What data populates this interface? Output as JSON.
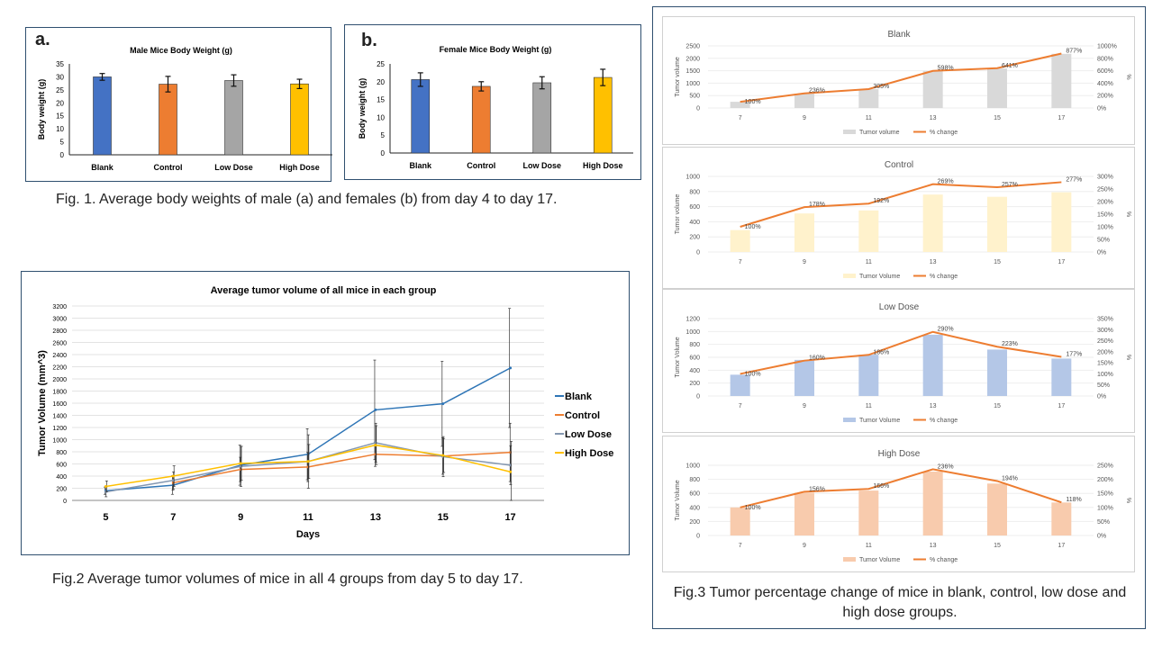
{
  "fig1": {
    "male": {
      "letter": "a.",
      "title": "Male Mice Body Weight (g)",
      "ylabel": "Body weight (g)",
      "categories": [
        "Blank",
        "Control",
        "Low Dose",
        "High Dose"
      ],
      "values": [
        30,
        27.2,
        28.6,
        27.3
      ],
      "errors": [
        1.3,
        3.0,
        2.2,
        1.8
      ],
      "colors": [
        "#4472c4",
        "#ed7d31",
        "#a5a5a5",
        "#ffc000"
      ],
      "ylim": [
        0,
        35
      ],
      "yticks": [
        0,
        5,
        10,
        15,
        20,
        25,
        30,
        35
      ]
    },
    "female": {
      "letter": "b.",
      "title": "Female Mice Body Weight (g)",
      "ylabel": "Body weight (g)",
      "categories": [
        "Blank",
        "Control",
        "Low Dose",
        "High Dose"
      ],
      "values": [
        20.6,
        18.7,
        19.7,
        21.2
      ],
      "errors": [
        1.9,
        1.3,
        1.7,
        2.3
      ],
      "colors": [
        "#4472c4",
        "#ed7d31",
        "#a5a5a5",
        "#ffc000"
      ],
      "ylim": [
        0,
        25
      ],
      "yticks": [
        0,
        5,
        10,
        15,
        20,
        25
      ]
    },
    "caption": "Fig. 1. Average body weights of male (a) and females (b) from day 4 to day 17."
  },
  "fig2": {
    "title": "Average tumor volume of all mice in each group",
    "xlabel": "Days",
    "ylabel": "Tumor Volume (mm^3)",
    "x": [
      5,
      7,
      9,
      11,
      13,
      15,
      17
    ],
    "ylim": [
      0,
      3200
    ],
    "yticks": [
      0,
      200,
      400,
      600,
      800,
      1000,
      1200,
      1400,
      1600,
      1800,
      2000,
      2200,
      2400,
      2600,
      2800,
      3000,
      3200
    ],
    "series": [
      {
        "name": "Blank",
        "color": "#2e75b6",
        "values": [
          160,
          250,
          580,
          760,
          1490,
          1590,
          2180
        ],
        "errors": [
          60,
          150,
          330,
          420,
          820,
          700,
          980
        ]
      },
      {
        "name": "Control",
        "color": "#ed7d31",
        "values": [
          null,
          290,
          510,
          550,
          760,
          730,
          790
        ],
        "errors": [
          0,
          120,
          200,
          240,
          200,
          300,
          480
        ]
      },
      {
        "name": "Low Dose",
        "color": "#8497b0",
        "values": [
          140,
          330,
          560,
          640,
          950,
          720,
          580
        ],
        "errors": [
          80,
          140,
          330,
          440,
          320,
          330,
          320
        ]
      },
      {
        "name": "High Dose",
        "color": "#ffc000",
        "values": [
          230,
          400,
          610,
          640,
          910,
          740,
          470
        ],
        "errors": [
          90,
          170,
          280,
          280,
          320,
          280,
          500
        ]
      }
    ],
    "caption": "Fig.2 Average tumor volumes of mice in all 4 groups from day 5 to day 17."
  },
  "fig3": {
    "caption": "Fig.3 Tumor percentage change of mice in blank, control, low dose and high dose groups.",
    "charts": [
      {
        "title": "Blank",
        "bar_name": "Tumor volume",
        "line_name": "% change",
        "ylabel": "Tumor volume",
        "y2label": "%",
        "bar_color": "#d9d9d9",
        "line_color": "#ed7d31",
        "categories": [
          "7",
          "9",
          "11",
          "13",
          "15",
          "17"
        ],
        "bars": [
          250,
          580,
          760,
          1490,
          1590,
          2180
        ],
        "pct": [
          100,
          236,
          305,
          598,
          641,
          877
        ],
        "pct_labels": [
          "100%",
          "236%",
          "305%",
          "598%",
          "641%",
          "877%"
        ],
        "ylim": [
          0,
          2500
        ],
        "yticks": [
          0,
          500,
          1000,
          1500,
          2000,
          2500
        ],
        "y2lim": [
          0,
          1000
        ],
        "y2ticks": [
          0,
          200,
          400,
          600,
          800,
          1000
        ]
      },
      {
        "title": "Control",
        "bar_name": "Tumor Volume",
        "line_name": "% change",
        "ylabel": "Tumor volume",
        "y2label": "%",
        "bar_color": "#fff2cc",
        "line_color": "#ed7d31",
        "categories": [
          "7",
          "9",
          "11",
          "13",
          "15",
          "17"
        ],
        "bars": [
          290,
          510,
          550,
          760,
          730,
          790
        ],
        "pct": [
          100,
          178,
          192,
          269,
          257,
          277
        ],
        "pct_labels": [
          "100%",
          "178%",
          "192%",
          "269%",
          "257%",
          "277%"
        ],
        "ylim": [
          0,
          1000
        ],
        "yticks": [
          0,
          200,
          400,
          600,
          800,
          1000
        ],
        "y2lim": [
          0,
          300
        ],
        "y2ticks": [
          0,
          50,
          100,
          150,
          200,
          250,
          300
        ]
      },
      {
        "title": "Low Dose",
        "bar_name": "Tumor Volume",
        "line_name": "% change",
        "ylabel": "Tumor Volume",
        "y2label": "%",
        "bar_color": "#b4c7e7",
        "line_color": "#ed7d31",
        "categories": [
          "7",
          "9",
          "11",
          "13",
          "15",
          "17"
        ],
        "bars": [
          330,
          560,
          640,
          950,
          720,
          580
        ],
        "pct": [
          100,
          160,
          186,
          290,
          223,
          177
        ],
        "pct_labels": [
          "100%",
          "160%",
          "186%",
          "290%",
          "223%",
          "177%"
        ],
        "ylim": [
          0,
          1200
        ],
        "yticks": [
          0,
          200,
          400,
          600,
          800,
          1000,
          1200
        ],
        "y2lim": [
          0,
          350
        ],
        "y2ticks": [
          0,
          50,
          100,
          150,
          200,
          250,
          300,
          350
        ]
      },
      {
        "title": "High Dose",
        "bar_name": "Tumor Volume",
        "line_name": "% change",
        "ylabel": "Tumor Volume",
        "y2label": "%",
        "bar_color": "#f8cbad",
        "line_color": "#ed7d31",
        "categories": [
          "7",
          "9",
          "11",
          "13",
          "15",
          "17"
        ],
        "bars": [
          400,
          610,
          640,
          910,
          740,
          470
        ],
        "pct": [
          100,
          156,
          166,
          236,
          194,
          118
        ],
        "pct_labels": [
          "100%",
          "156%",
          "166%",
          "236%",
          "194%",
          "118%"
        ],
        "ylim": [
          0,
          1000
        ],
        "yticks": [
          0,
          200,
          400,
          600,
          800,
          1000
        ],
        "y2lim": [
          0,
          250
        ],
        "y2ticks": [
          0,
          50,
          100,
          150,
          200,
          250
        ]
      }
    ]
  },
  "chart_data": [
    {
      "type": "bar",
      "title": "Male Mice Body Weight (g)",
      "ylabel": "Body weight (g)",
      "categories": [
        "Blank",
        "Control",
        "Low Dose",
        "High Dose"
      ],
      "values": [
        30,
        27.2,
        28.6,
        27.3
      ],
      "ylim": [
        0,
        35
      ]
    },
    {
      "type": "bar",
      "title": "Female Mice Body Weight (g)",
      "ylabel": "Body weight (g)",
      "categories": [
        "Blank",
        "Control",
        "Low Dose",
        "High Dose"
      ],
      "values": [
        20.6,
        18.7,
        19.7,
        21.2
      ],
      "ylim": [
        0,
        25
      ]
    },
    {
      "type": "line",
      "title": "Average tumor volume of all mice in each group",
      "xlabel": "Days",
      "ylabel": "Tumor Volume (mm^3)",
      "x": [
        5,
        7,
        9,
        11,
        13,
        15,
        17
      ],
      "ylim": [
        0,
        3200
      ],
      "series": [
        {
          "name": "Blank",
          "values": [
            160,
            250,
            580,
            760,
            1490,
            1590,
            2180
          ]
        },
        {
          "name": "Control",
          "values": [
            null,
            290,
            510,
            550,
            760,
            730,
            790
          ]
        },
        {
          "name": "Low Dose",
          "values": [
            140,
            330,
            560,
            640,
            950,
            720,
            580
          ]
        },
        {
          "name": "High Dose",
          "values": [
            230,
            400,
            610,
            640,
            910,
            740,
            470
          ]
        }
      ]
    },
    {
      "type": "bar",
      "title": "Blank",
      "categories": [
        "7",
        "9",
        "11",
        "13",
        "15",
        "17"
      ],
      "series": [
        {
          "name": "Tumor volume",
          "values": [
            250,
            580,
            760,
            1490,
            1590,
            2180
          ]
        },
        {
          "name": "% change",
          "values": [
            100,
            236,
            305,
            598,
            641,
            877
          ]
        }
      ]
    },
    {
      "type": "bar",
      "title": "Control",
      "categories": [
        "7",
        "9",
        "11",
        "13",
        "15",
        "17"
      ],
      "series": [
        {
          "name": "Tumor Volume",
          "values": [
            290,
            510,
            550,
            760,
            730,
            790
          ]
        },
        {
          "name": "% change",
          "values": [
            100,
            178,
            192,
            269,
            257,
            277
          ]
        }
      ]
    },
    {
      "type": "bar",
      "title": "Low Dose",
      "categories": [
        "7",
        "9",
        "11",
        "13",
        "15",
        "17"
      ],
      "series": [
        {
          "name": "Tumor Volume",
          "values": [
            330,
            560,
            640,
            950,
            720,
            580
          ]
        },
        {
          "name": "% change",
          "values": [
            100,
            160,
            186,
            290,
            223,
            177
          ]
        }
      ]
    },
    {
      "type": "bar",
      "title": "High Dose",
      "categories": [
        "7",
        "9",
        "11",
        "13",
        "15",
        "17"
      ],
      "series": [
        {
          "name": "Tumor Volume",
          "values": [
            400,
            610,
            640,
            910,
            740,
            470
          ]
        },
        {
          "name": "% change",
          "values": [
            100,
            156,
            166,
            236,
            194,
            118
          ]
        }
      ]
    }
  ]
}
